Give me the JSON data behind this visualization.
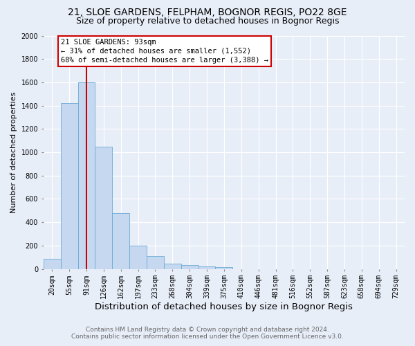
{
  "title": "21, SLOE GARDENS, FELPHAM, BOGNOR REGIS, PO22 8GE",
  "subtitle": "Size of property relative to detached houses in Bognor Regis",
  "xlabel": "Distribution of detached houses by size in Bognor Regis",
  "ylabel": "Number of detached properties",
  "footnote1": "Contains HM Land Registry data © Crown copyright and database right 2024.",
  "footnote2": "Contains public sector information licensed under the Open Government Licence v3.0.",
  "bar_labels": [
    "20sqm",
    "55sqm",
    "91sqm",
    "126sqm",
    "162sqm",
    "197sqm",
    "233sqm",
    "268sqm",
    "304sqm",
    "339sqm",
    "375sqm",
    "410sqm",
    "446sqm",
    "481sqm",
    "516sqm",
    "552sqm",
    "587sqm",
    "623sqm",
    "658sqm",
    "694sqm",
    "729sqm"
  ],
  "bar_values": [
    85,
    1420,
    1600,
    1050,
    480,
    200,
    110,
    45,
    35,
    20,
    15,
    0,
    0,
    0,
    0,
    0,
    0,
    0,
    0,
    0,
    0
  ],
  "bar_color": "#c5d8f0",
  "bar_edge_color": "#6aaad4",
  "vline_index": 2,
  "vline_color": "#cc0000",
  "marker_label": "21 SLOE GARDENS: 93sqm",
  "annotation_line1": "← 31% of detached houses are smaller (1,552)",
  "annotation_line2": "68% of semi-detached houses are larger (3,388) →",
  "annotation_box_facecolor": "#ffffff",
  "annotation_box_edgecolor": "#cc0000",
  "ylim_min": 0,
  "ylim_max": 2000,
  "yticks": [
    0,
    200,
    400,
    600,
    800,
    1000,
    1200,
    1400,
    1600,
    1800,
    2000
  ],
  "background_color": "#e8eef8",
  "grid_color": "#ffffff",
  "title_fontsize": 10,
  "subtitle_fontsize": 9,
  "xlabel_fontsize": 9.5,
  "ylabel_fontsize": 8,
  "tick_fontsize": 7,
  "footnote_fontsize": 6.5
}
